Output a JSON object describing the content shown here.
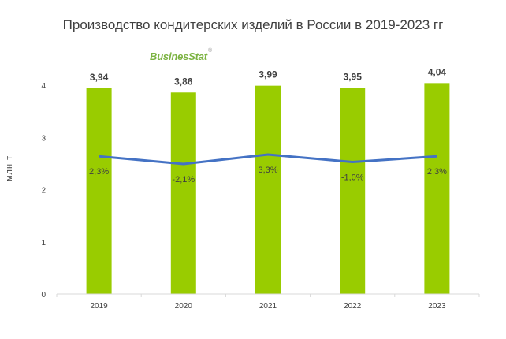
{
  "chart_data": {
    "type": "bar",
    "title": "Производство кондитерских изделий в России в 2019-2023 гг",
    "ylabel": "млн т",
    "xlabel": "",
    "ylim": [
      0,
      4
    ],
    "yticks": [
      "0",
      "1",
      "2",
      "3",
      "4"
    ],
    "categories": [
      "2019",
      "2020",
      "2021",
      "2022",
      "2023"
    ],
    "series": [
      {
        "type": "bar",
        "values": [
          3.94,
          3.86,
          3.99,
          3.95,
          4.04
        ],
        "labels": [
          "3,94",
          "3,86",
          "3,99",
          "3,95",
          "4,04"
        ]
      },
      {
        "type": "line",
        "values": [
          2.3,
          -2.1,
          3.3,
          -1.0,
          2.3
        ],
        "labels": [
          "2,3%",
          "-2,1%",
          "3,3%",
          "-1,0%",
          "2,3%"
        ]
      }
    ],
    "grid": false,
    "legend": "none",
    "colors": {
      "bar": "#99cc00",
      "line": "#4472c4",
      "axis": "#d9d9d9",
      "text": "#404040"
    }
  },
  "logo": {
    "text": "BusinesStat",
    "mark": "®"
  }
}
